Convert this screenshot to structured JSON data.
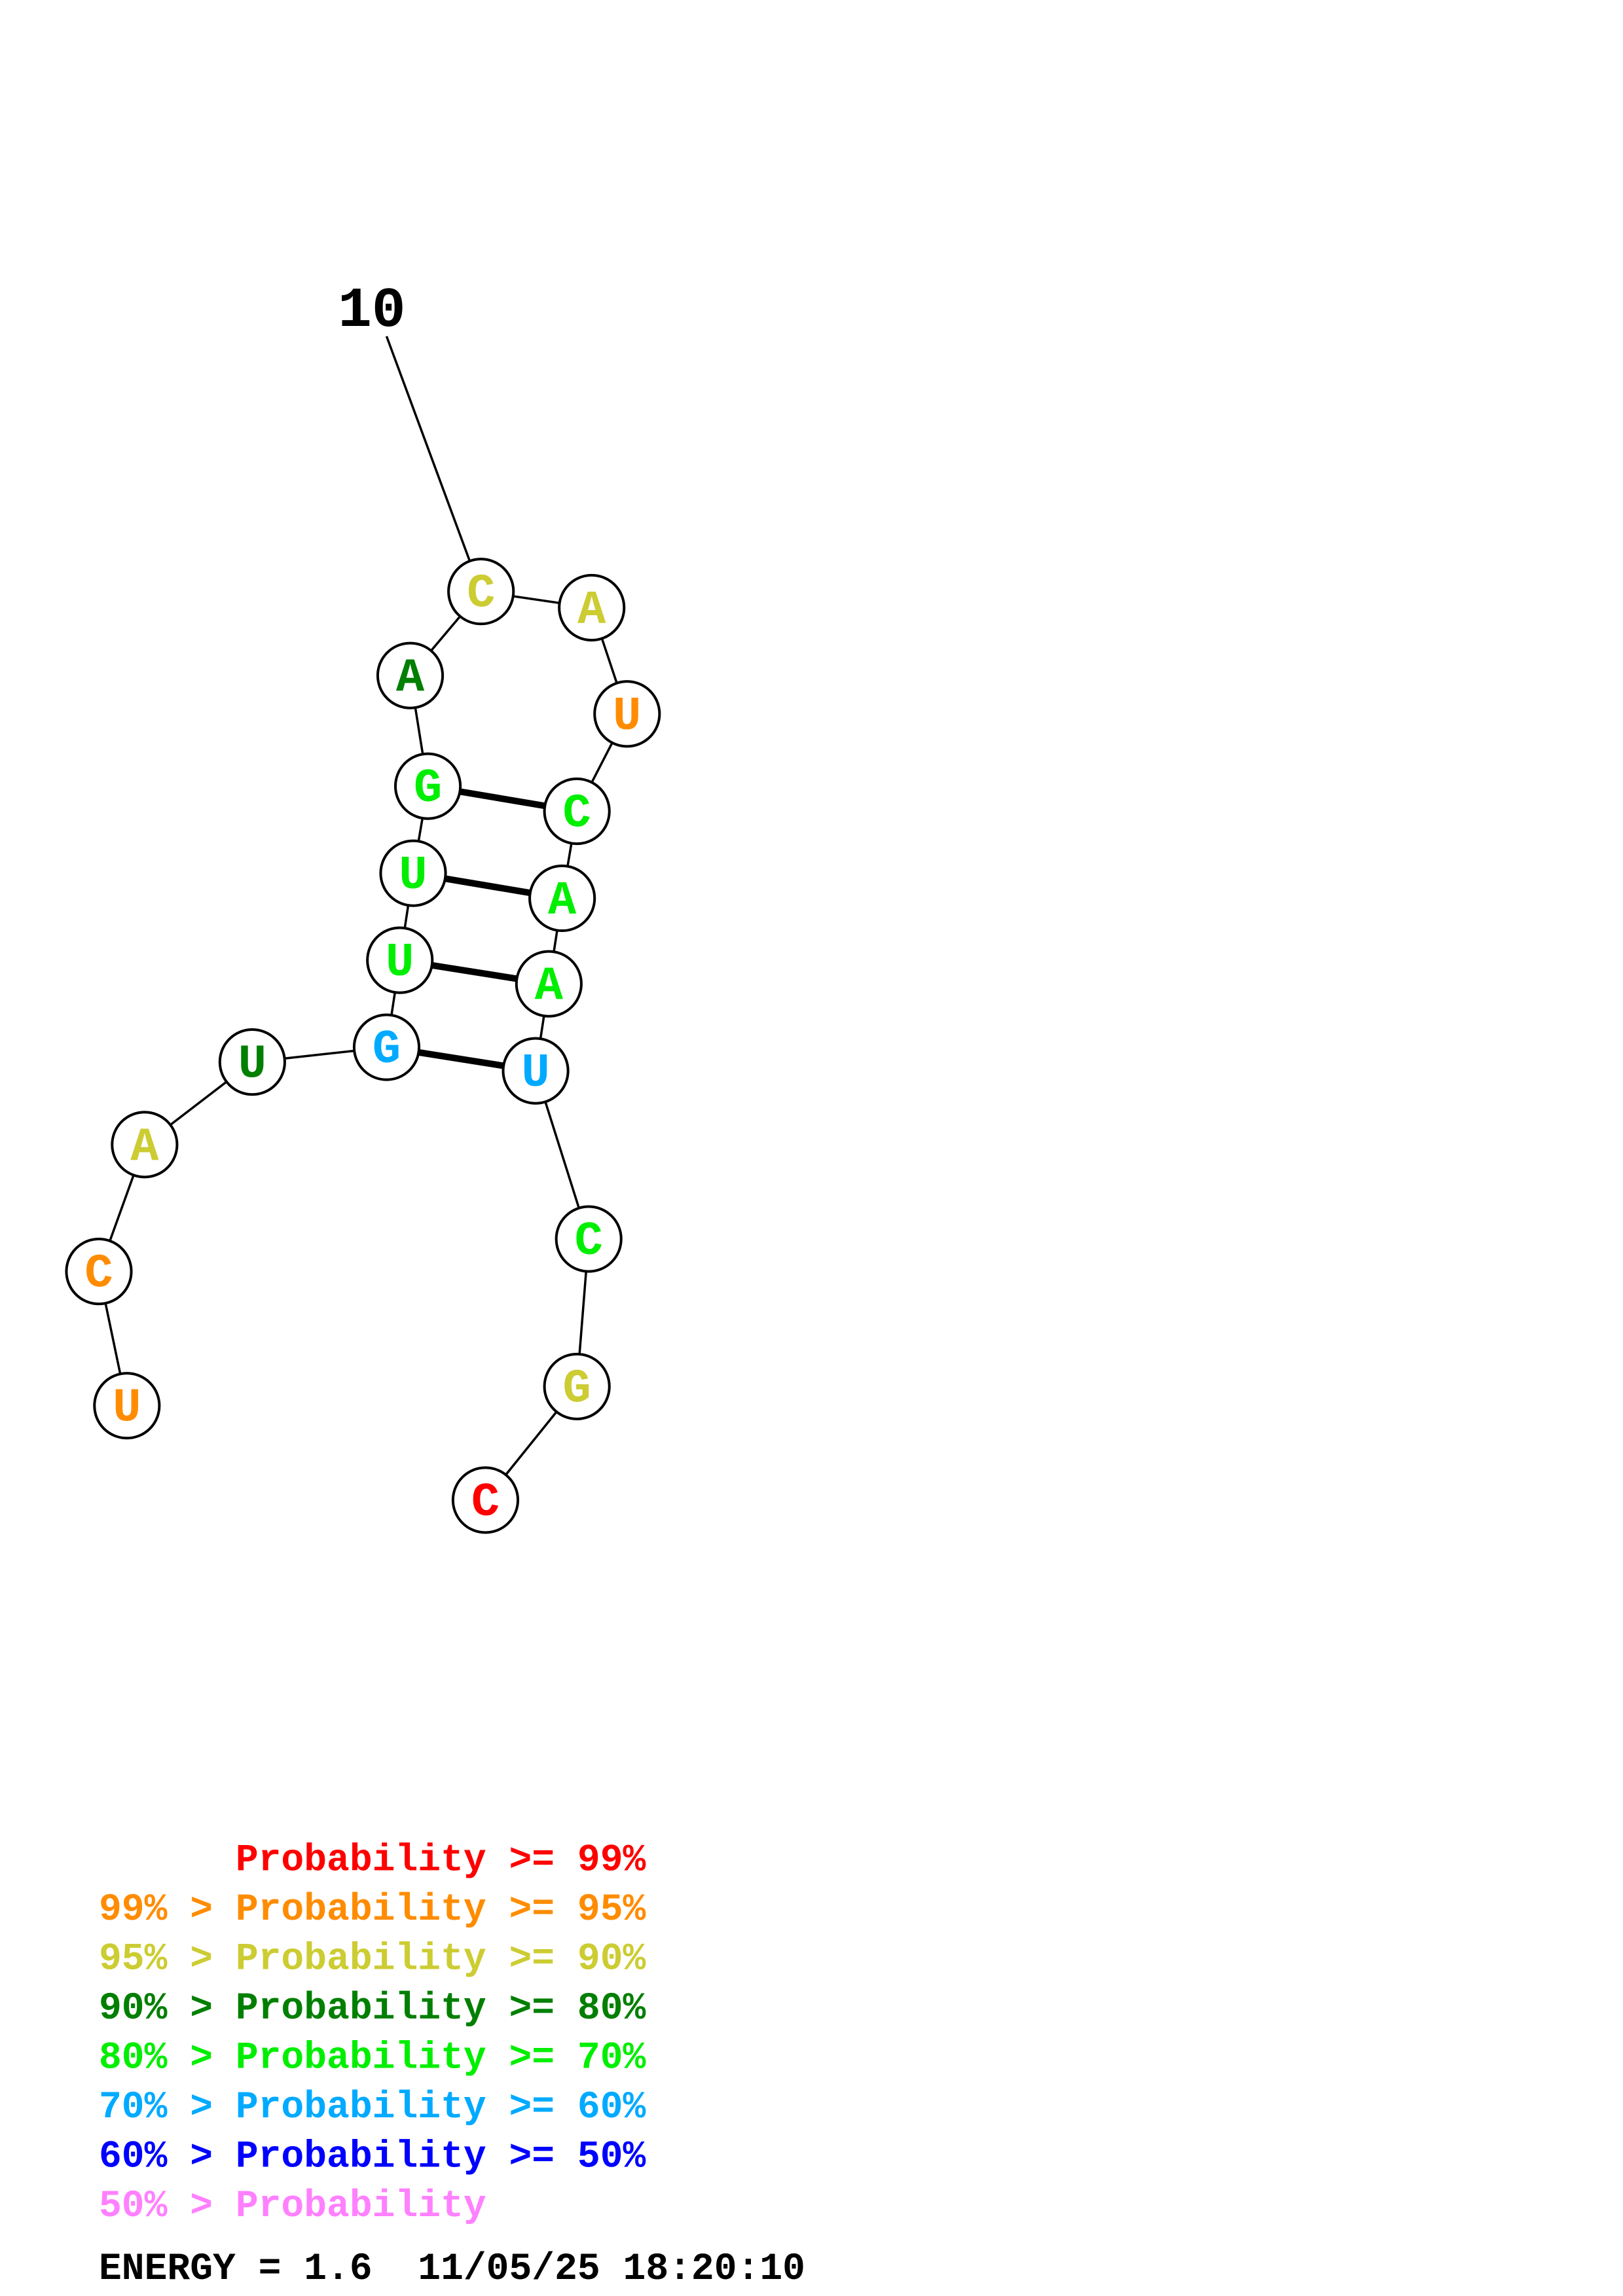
{
  "diagram": {
    "index_label": "10",
    "bases": [
      {
        "letter": "U",
        "color": "#ff8c00"
      },
      {
        "letter": "C",
        "color": "#ff8c00"
      },
      {
        "letter": "A",
        "color": "#cccc33"
      },
      {
        "letter": "U",
        "color": "#007f00"
      },
      {
        "letter": "G",
        "color": "#00aaff"
      },
      {
        "letter": "U",
        "color": "#00ee00"
      },
      {
        "letter": "U",
        "color": "#00ee00"
      },
      {
        "letter": "G",
        "color": "#00ee00"
      },
      {
        "letter": "A",
        "color": "#007f00"
      },
      {
        "letter": "C",
        "color": "#cccc33"
      },
      {
        "letter": "A",
        "color": "#cccc33"
      },
      {
        "letter": "U",
        "color": "#ff8c00"
      },
      {
        "letter": "C",
        "color": "#00ee00"
      },
      {
        "letter": "A",
        "color": "#00ee00"
      },
      {
        "letter": "A",
        "color": "#00ee00"
      },
      {
        "letter": "U",
        "color": "#00aaff"
      },
      {
        "letter": "C",
        "color": "#00ee00"
      },
      {
        "letter": "G",
        "color": "#cccc33"
      },
      {
        "letter": "C",
        "color": "#ff0000"
      }
    ]
  },
  "legend": [
    {
      "text": "      Probability >= 99%",
      "color": "#ff0000"
    },
    {
      "text": "99% > Probability >= 95%",
      "color": "#ff8c00"
    },
    {
      "text": "95% > Probability >= 90%",
      "color": "#cccc33"
    },
    {
      "text": "90% > Probability >= 80%",
      "color": "#007f00"
    },
    {
      "text": "80% > Probability >= 70%",
      "color": "#00ee00"
    },
    {
      "text": "70% > Probability >= 60%",
      "color": "#00aaff"
    },
    {
      "text": "60% > Probability >= 50%",
      "color": "#0000ff"
    },
    {
      "text": "50% > Probability",
      "color": "#ff80ff"
    }
  ],
  "footer": {
    "energy_text": "ENERGY = 1.6  11/05/25 18:20:10"
  }
}
